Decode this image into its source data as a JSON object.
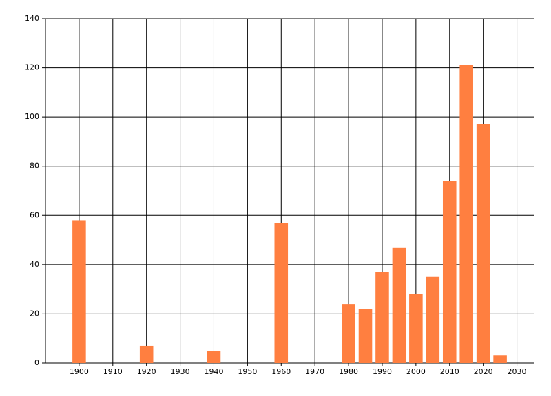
{
  "chart_data": {
    "type": "bar",
    "x": [
      1900,
      1920,
      1940,
      1960,
      1980,
      1985,
      1990,
      1995,
      2000,
      2005,
      2010,
      2015,
      2020,
      2025
    ],
    "values": [
      58,
      7,
      5,
      57,
      24,
      22,
      37,
      47,
      28,
      35,
      74,
      121,
      97,
      3
    ],
    "color": "#ff7f40",
    "xlim": [
      1890,
      2035
    ],
    "xticks": [
      1900,
      1910,
      1920,
      1930,
      1940,
      1950,
      1960,
      1970,
      1980,
      1990,
      2000,
      2010,
      2020,
      2030
    ],
    "ylim": [
      0,
      140
    ],
    "yticks": [
      0,
      20,
      40,
      60,
      80,
      100,
      120,
      140
    ],
    "grid": true
  }
}
